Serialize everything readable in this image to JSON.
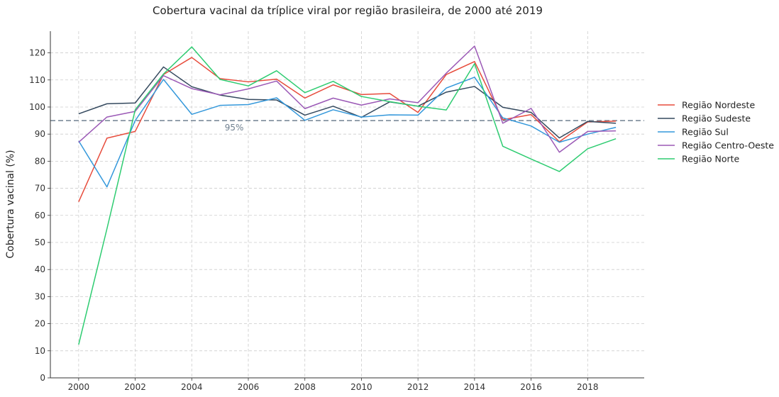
{
  "chart_data": {
    "type": "line",
    "title": "Cobertura vacinal da tríplice viral por região brasileira, de 2000 até 2019",
    "xlabel": "",
    "ylabel": "Cobertura vacinal (%)",
    "xlim": [
      1999,
      2020
    ],
    "ylim": [
      0,
      128
    ],
    "x_ticks": [
      2000,
      2002,
      2004,
      2006,
      2008,
      2010,
      2012,
      2014,
      2016,
      2018
    ],
    "y_ticks": [
      0,
      10,
      20,
      30,
      40,
      50,
      60,
      70,
      80,
      90,
      100,
      110,
      120
    ],
    "grid": true,
    "legend_position": "right",
    "reference_line": {
      "value": 95,
      "label": "95%",
      "label_x": 2005.5,
      "color": "#708090"
    },
    "x": [
      2000,
      2001,
      2002,
      2003,
      2004,
      2005,
      2006,
      2007,
      2008,
      2009,
      2010,
      2011,
      2012,
      2013,
      2014,
      2015,
      2016,
      2017,
      2018,
      2019
    ],
    "series": [
      {
        "name": "Região Nordeste",
        "color": "#e74c3c",
        "values": [
          65.0,
          88.5,
          91.0,
          112.0,
          118.3,
          110.5,
          109.3,
          110.3,
          103.3,
          108.2,
          104.6,
          105.0,
          98.0,
          112.0,
          116.8,
          95.3,
          97.2,
          87.2,
          94.5,
          94.8
        ]
      },
      {
        "name": "Região Sudeste",
        "color": "#34495e",
        "values": [
          97.5,
          101.2,
          101.5,
          114.8,
          107.5,
          104.4,
          102.8,
          102.6,
          97.0,
          100.3,
          96.2,
          101.9,
          100.3,
          105.5,
          107.6,
          99.9,
          98.0,
          88.6,
          94.7,
          94.0
        ]
      },
      {
        "name": "Região Sul",
        "color": "#3498db",
        "values": [
          87.5,
          70.5,
          95.0,
          110.2,
          97.3,
          100.6,
          100.9,
          103.4,
          95.1,
          99.0,
          96.3,
          97.1,
          97.0,
          107.0,
          111.0,
          96.0,
          93.0,
          87.0,
          90.0,
          92.5
        ]
      },
      {
        "name": "Região Centro-Oeste",
        "color": "#9b59b6",
        "values": [
          87.0,
          96.3,
          98.4,
          111.6,
          106.8,
          104.5,
          106.7,
          109.6,
          99.4,
          103.3,
          100.7,
          103.0,
          101.6,
          112.5,
          122.5,
          94.0,
          99.5,
          83.3,
          91.0,
          91.2
        ]
      },
      {
        "name": "Região Norte",
        "color": "#2ecc71",
        "values": [
          12.3,
          55.0,
          99.0,
          112.2,
          122.2,
          110.2,
          107.8,
          113.4,
          105.3,
          109.5,
          103.9,
          102.0,
          100.3,
          98.9,
          116.0,
          85.5,
          80.8,
          76.2,
          84.6,
          88.3
        ]
      }
    ]
  }
}
